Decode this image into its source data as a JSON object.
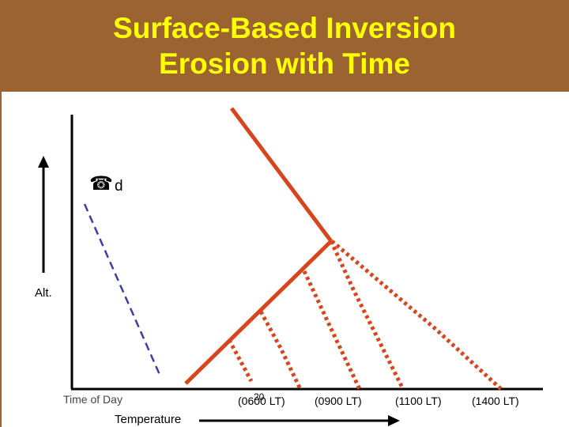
{
  "title": {
    "line1": "Surface-Based Inversion",
    "line2": "Erosion with Time"
  },
  "colors": {
    "title_bg": "#9a6331",
    "title_text": "#ffff00",
    "profile": "#d6451c",
    "dry_adiabat": "#3b3f9e"
  },
  "labels": {
    "gamma_symbol": "☎",
    "gamma_sub": "d",
    "altitude": "Alt.",
    "time_of_day": "Time of Day",
    "temperature": "Temperature",
    "page_number": "20"
  },
  "times": [
    "(0600 LT)",
    "(0900 LT)",
    "(1100 LT)",
    "(1400 LT)"
  ],
  "icons": {
    "gamma": "telephone-glyph"
  }
}
